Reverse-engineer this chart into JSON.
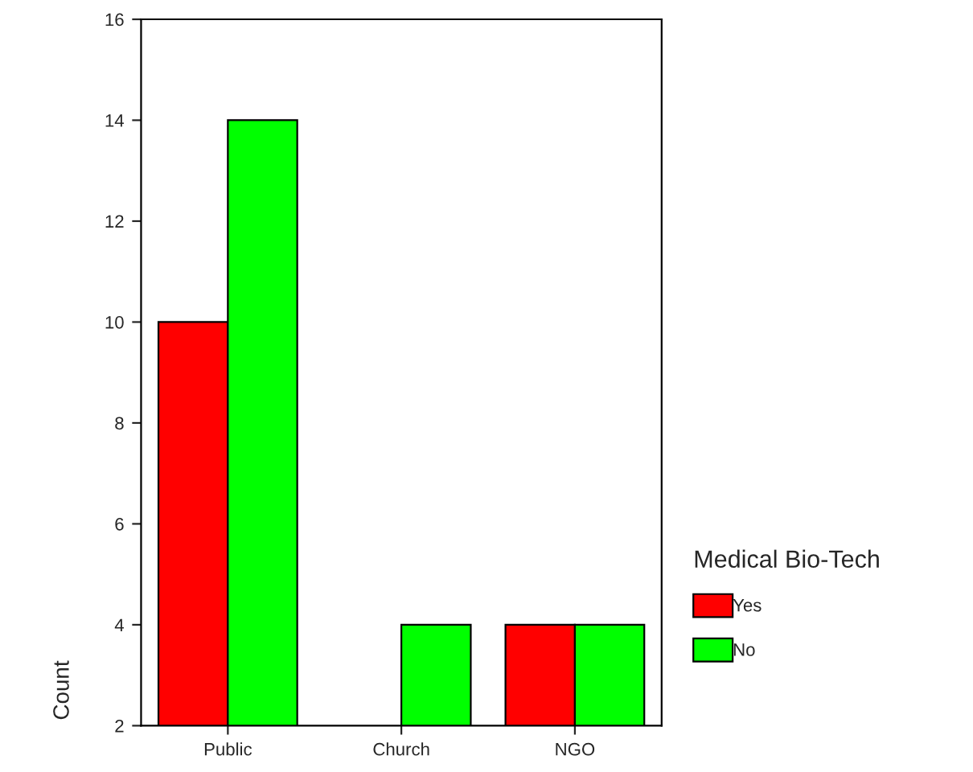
{
  "chart_data": {
    "type": "bar",
    "ylabel": "Count",
    "legend_title": "Medical Bio-Tech",
    "categories": [
      "Public",
      "Church",
      "NGO"
    ],
    "series": [
      {
        "name": "Yes",
        "color": "#ff0000",
        "values": [
          10,
          null,
          4
        ]
      },
      {
        "name": "No",
        "color": "#00ff00",
        "values": [
          14,
          4,
          4
        ]
      }
    ],
    "ylim": [
      2,
      16
    ],
    "yticks": [
      2,
      4,
      6,
      8,
      10,
      12,
      14,
      16
    ],
    "grid": false,
    "legend": "right"
  }
}
